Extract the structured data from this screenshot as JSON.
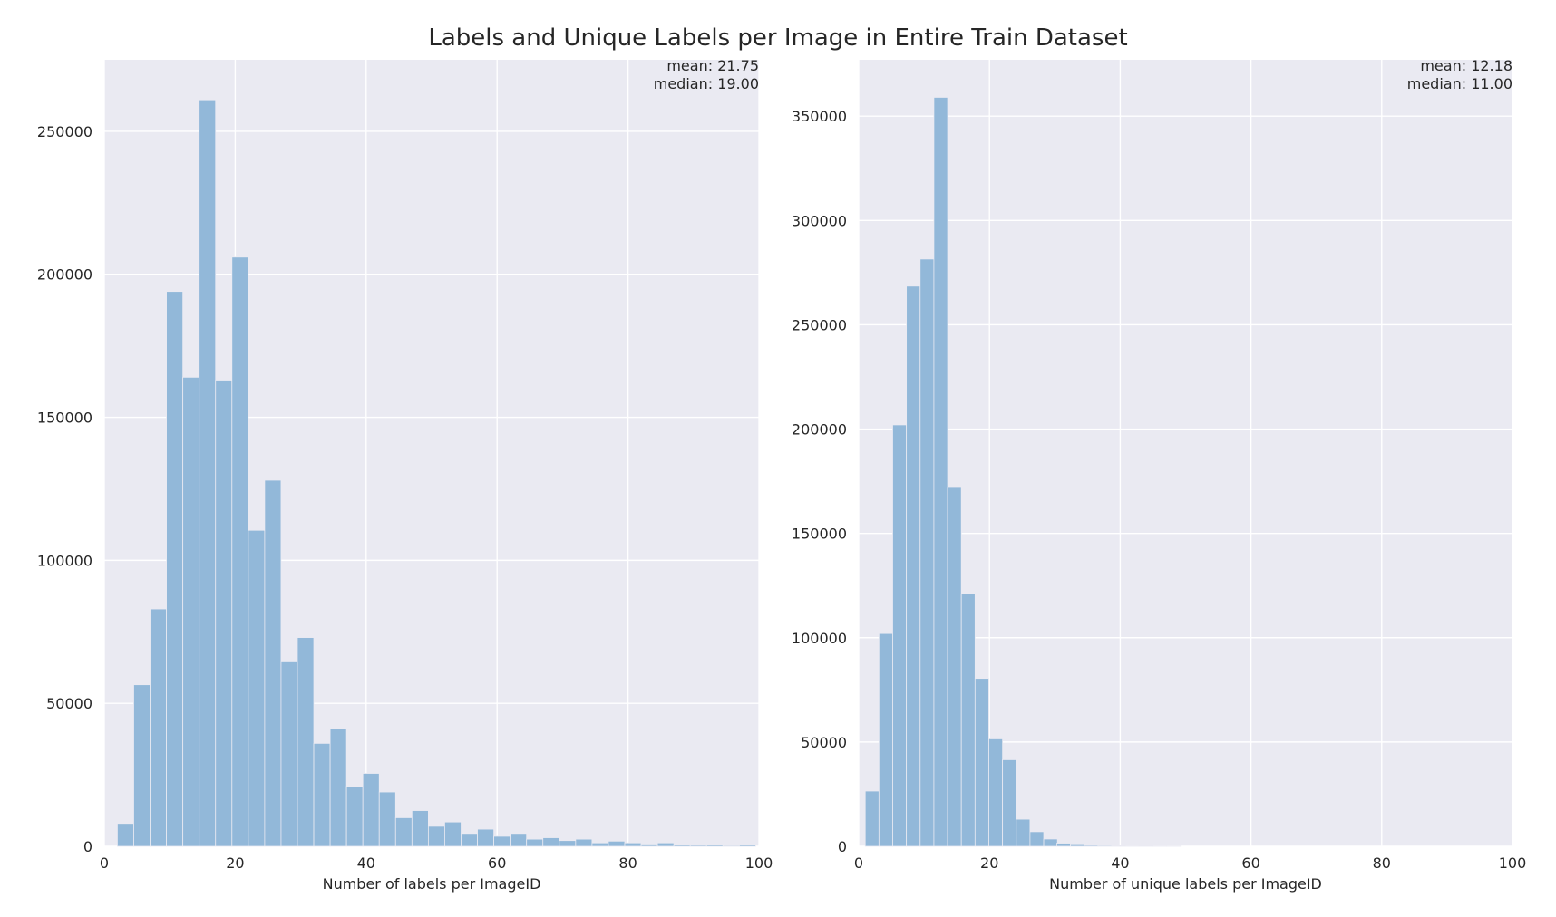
{
  "figure": {
    "suptitle": "Labels and Unique Labels per Image in Entire Train Dataset",
    "bar_color": "#92b8d9",
    "background_color": "#eaeaf2"
  },
  "chart_data": [
    {
      "type": "bar",
      "title": "",
      "xlabel": "Number of labels per ImageID",
      "ylabel": "",
      "xlim": [
        0,
        100
      ],
      "ylim": [
        0,
        275000
      ],
      "grid": true,
      "xticks": [
        0,
        20,
        40,
        60,
        80,
        100
      ],
      "yticks": [
        0,
        50000,
        100000,
        150000,
        200000,
        250000
      ],
      "bin_width": 2.5,
      "bin_starts": [
        2,
        4.5,
        7,
        9.5,
        12,
        14.5,
        17,
        19.5,
        22,
        24.5,
        27,
        29.5,
        32,
        34.5,
        37,
        39.5,
        42,
        44.5,
        47,
        49.5,
        52,
        54.5,
        57,
        59.5,
        62,
        64.5,
        67,
        69.5,
        72,
        74.5,
        77,
        79.5,
        82,
        84.5,
        87,
        89.5,
        92,
        94.5,
        97
      ],
      "values": [
        8000,
        56500,
        83000,
        194000,
        164000,
        261000,
        163000,
        206000,
        110500,
        128000,
        64500,
        73000,
        36000,
        41000,
        21000,
        25500,
        19000,
        10000,
        12500,
        7000,
        8500,
        4500,
        6000,
        3500,
        4500,
        2500,
        3000,
        2000,
        2500,
        1200,
        1800,
        1200,
        800,
        1200,
        500,
        400,
        700,
        300,
        500
      ],
      "annotations": [
        "mean: 21.75",
        "median: 19.00"
      ]
    },
    {
      "type": "bar",
      "title": "",
      "xlabel": "Number of unique labels per ImageID",
      "ylabel": "",
      "xlim": [
        0,
        100
      ],
      "ylim": [
        0,
        377000
      ],
      "grid": true,
      "xticks": [
        0,
        20,
        40,
        60,
        80,
        100
      ],
      "yticks": [
        0,
        50000,
        100000,
        150000,
        200000,
        250000,
        300000,
        350000
      ],
      "bin_width": 2.1,
      "bin_starts": [
        1,
        3.1,
        5.2,
        7.3,
        9.4,
        11.5,
        13.6,
        15.7,
        17.8,
        19.9,
        22,
        24.1,
        26.2,
        28.3,
        30.3,
        32.4,
        34.5,
        36.6,
        38.7,
        40.8,
        42.9,
        45,
        47.1
      ],
      "values": [
        26500,
        102000,
        202000,
        268500,
        281500,
        359000,
        172000,
        121000,
        80500,
        51500,
        41500,
        13000,
        7000,
        3500,
        1500,
        1200,
        500,
        400,
        300,
        200,
        300,
        150,
        100
      ],
      "annotations": [
        "mean: 12.18",
        "median: 11.00"
      ]
    }
  ]
}
